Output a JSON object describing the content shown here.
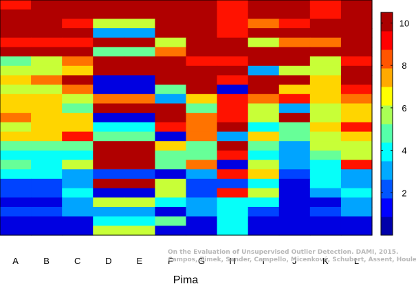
{
  "chart_data": {
    "type": "heatmap",
    "xlabel": "Pima",
    "categories": [
      "A",
      "B",
      "C",
      "D",
      "E",
      "F",
      "G",
      "H",
      "I",
      "J",
      "K",
      "L"
    ],
    "colorbar": {
      "min": 0,
      "max": 10.5,
      "ticks": [
        2,
        4,
        6,
        8,
        10
      ],
      "colormap": "jet"
    },
    "grid": false,
    "values": [
      [
        9,
        10,
        10,
        10,
        10,
        10,
        10,
        9,
        10,
        10,
        9,
        10
      ],
      [
        10,
        10,
        10,
        10,
        10,
        10,
        10,
        9,
        10,
        10,
        9,
        10
      ],
      [
        10,
        10,
        9,
        6,
        6,
        10,
        10,
        9,
        8,
        9,
        10,
        10
      ],
      [
        10,
        10,
        10,
        3,
        3,
        10,
        10,
        9,
        10,
        10,
        10,
        10
      ],
      [
        9,
        9,
        9,
        10,
        10,
        6,
        10,
        10,
        6,
        8,
        8,
        10
      ],
      [
        10,
        10,
        10,
        5,
        5,
        8,
        10,
        10,
        10,
        10,
        10,
        10
      ],
      [
        5,
        6,
        8,
        10,
        10,
        10,
        9,
        9,
        10,
        10,
        6,
        9
      ],
      [
        6,
        6,
        7,
        10,
        10,
        10,
        10,
        10,
        3,
        6,
        6,
        10
      ],
      [
        7,
        8,
        10,
        1,
        1,
        10,
        10,
        9,
        10,
        10,
        7,
        10
      ],
      [
        6,
        6,
        8,
        1,
        1,
        5,
        10,
        1,
        10,
        7,
        7,
        9
      ],
      [
        7,
        7,
        6,
        8,
        8,
        3,
        7,
        9,
        8,
        9,
        7,
        8
      ],
      [
        7,
        7,
        5,
        10,
        10,
        10,
        5,
        9,
        6,
        3,
        6,
        7
      ],
      [
        8,
        7,
        7,
        1,
        1,
        10,
        8,
        9,
        6,
        10,
        6,
        7
      ],
      [
        6,
        7,
        7,
        4,
        4,
        9,
        8,
        10,
        4,
        5,
        7,
        9
      ],
      [
        7,
        7,
        9,
        5,
        5,
        1,
        8,
        3,
        7,
        5,
        6,
        7
      ],
      [
        5,
        5,
        5,
        10,
        10,
        7,
        5,
        10,
        5,
        3,
        6,
        6
      ],
      [
        4,
        4,
        4,
        10,
        10,
        5,
        5,
        9,
        4,
        3,
        5,
        6
      ],
      [
        5,
        4,
        6,
        10,
        10,
        5,
        8,
        1,
        6,
        3,
        4,
        9
      ],
      [
        4,
        4,
        3,
        2,
        2,
        1,
        3,
        9,
        7,
        2,
        4,
        3
      ],
      [
        2,
        2,
        3,
        10,
        10,
        6,
        2,
        2,
        4,
        1,
        4,
        3
      ],
      [
        2,
        2,
        4,
        1,
        1,
        6,
        2,
        9,
        6,
        1,
        3,
        4
      ],
      [
        1,
        1,
        3,
        6,
        6,
        4,
        3,
        4,
        4,
        1,
        1,
        3
      ],
      [
        2,
        2,
        3,
        3,
        3,
        1,
        3,
        4,
        2,
        1,
        2,
        3
      ],
      [
        1,
        1,
        1,
        4,
        4,
        5,
        1,
        4,
        1,
        1,
        1,
        1
      ],
      [
        1,
        1,
        1,
        6,
        6,
        1,
        1,
        4,
        1,
        1,
        1,
        1
      ]
    ]
  },
  "credit": {
    "line1": "On the Evaluation of Unsupervised Outlier Detection. DAMI, 2015.",
    "line2": "Campos, Zimek, Sander, Campello, Micenková, Schubert, Assent, Houle"
  }
}
